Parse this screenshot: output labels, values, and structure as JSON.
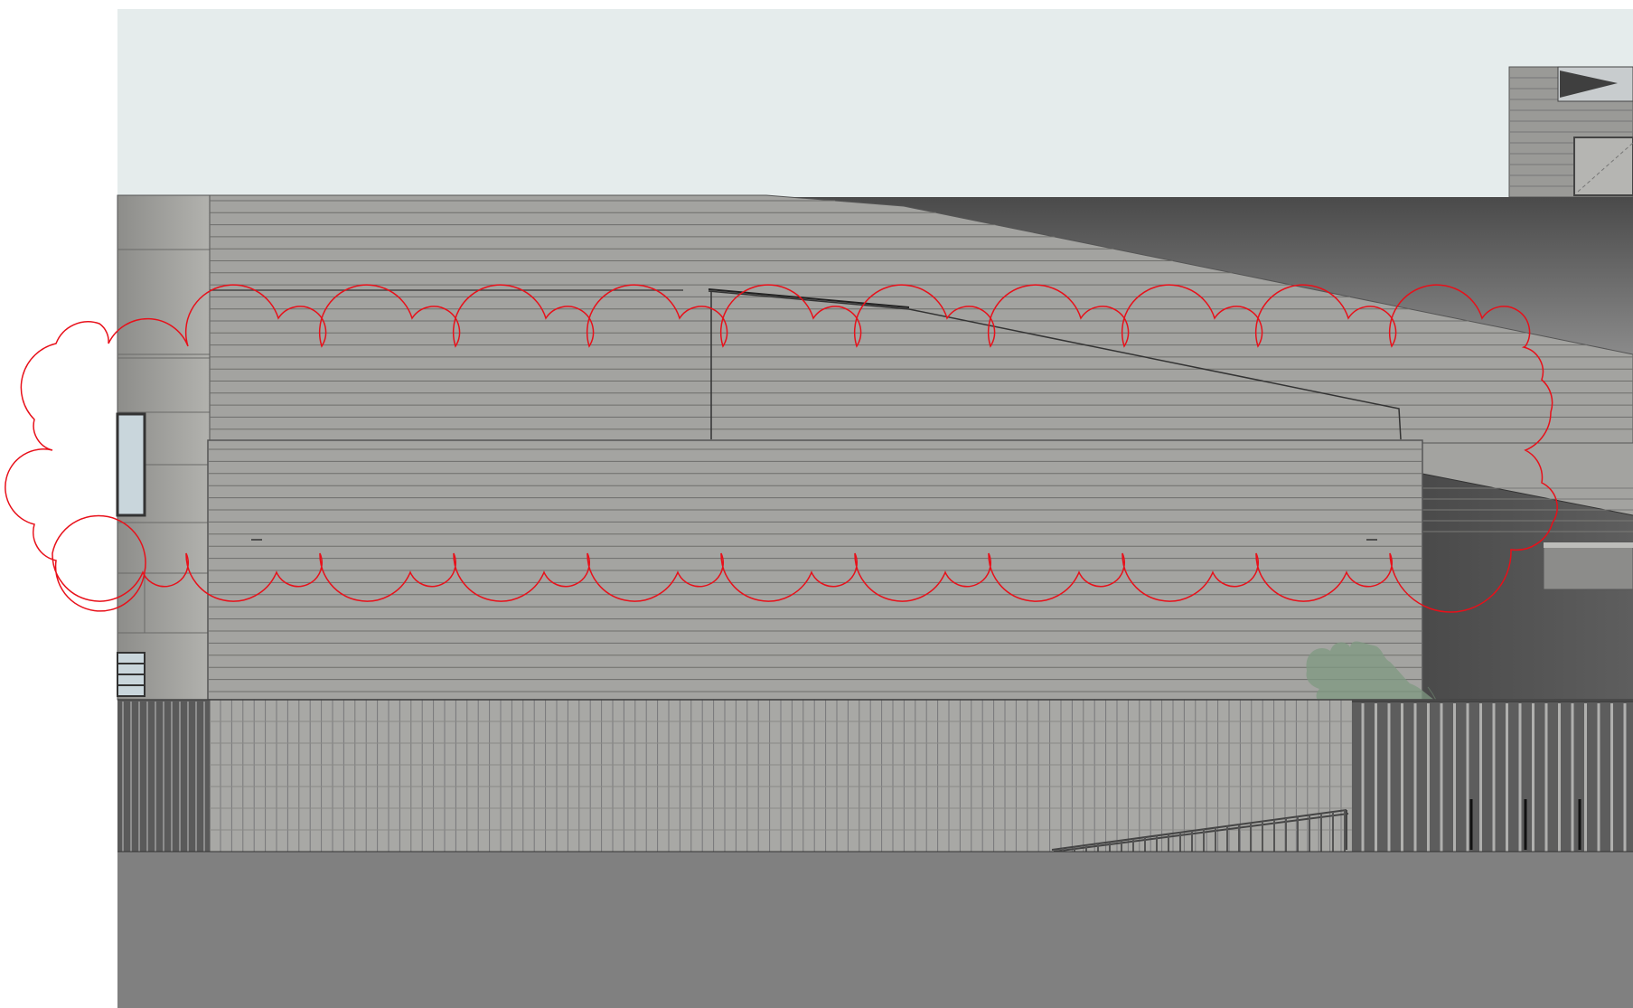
{
  "drawing": {
    "kind": "building-elevation",
    "colors": {
      "sky": "#e5ecec",
      "cladding": "#a3a3a0",
      "cladding_line": "#6e6e6b",
      "dark_roof": "#595959",
      "ground": "#808080",
      "fence": "#6b6b6b",
      "tree": "#7f9a82",
      "revision_cloud": "#e8101a"
    },
    "elements": [
      "sky",
      "siding-wall",
      "fence",
      "ground",
      "tree",
      "revision-cloud"
    ]
  }
}
